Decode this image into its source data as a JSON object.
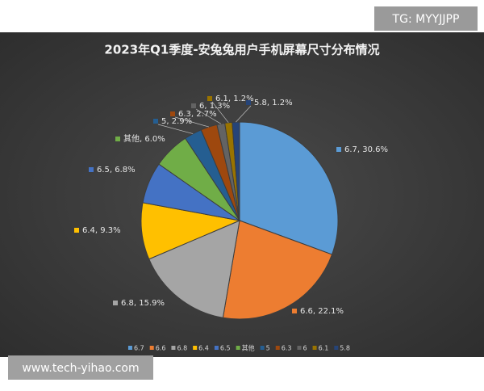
{
  "chart_data": {
    "type": "pie",
    "title": "2023年Q1季度-安兔兔用户手机屏幕尺寸分布情况",
    "categories": [
      "6.7",
      "6.6",
      "6.8",
      "6.4",
      "6.5",
      "其他",
      "5",
      "6.3",
      "6",
      "6.1",
      "5.8"
    ],
    "values": [
      30.6,
      22.1,
      15.9,
      9.3,
      6.8,
      6.0,
      2.9,
      2.7,
      1.3,
      1.2,
      1.2
    ],
    "value_labels": [
      "6.7, 30.6%",
      "6.6, 22.1%",
      "6.8, 15.9%",
      "6.4, 9.3%",
      "6.5, 6.8%",
      "其他, 6.0%",
      "5, 2.9%",
      "6.3, 2.7%",
      "6, 1.3%",
      "6.1, 1.2%",
      "5.8, 1.2%"
    ],
    "colors": [
      "#5b9bd5",
      "#ed7d31",
      "#a5a5a5",
      "#ffc000",
      "#4472c4",
      "#70ad47",
      "#255e91",
      "#9e480e",
      "#636363",
      "#997300",
      "#264478"
    ],
    "legend": "bottom",
    "annotations": [
      "TG: MYYJJPP",
      "www.tech-yihao.com"
    ]
  }
}
